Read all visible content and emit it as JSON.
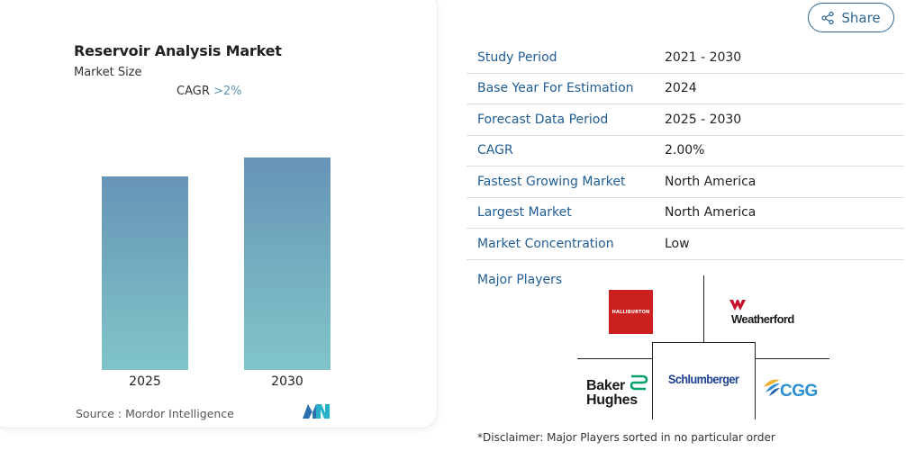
{
  "market_card": {
    "title": "Reservoir Analysis Market",
    "subtitle": "Market Size",
    "cagr_prefix": "CAGR",
    "cagr_value": ">2%",
    "source": "Source :  Mordor Intelligence",
    "logo_icon": "mordor-intelligence-logo"
  },
  "chart_data": {
    "type": "bar",
    "categories": [
      "2025",
      "2030"
    ],
    "values": [
      1.0,
      1.1
    ],
    "title": "",
    "xlabel": "",
    "ylabel": "",
    "ylim": [
      0,
      1.1
    ],
    "colors": [
      "#6694b7",
      "#80c4c8"
    ]
  },
  "share": {
    "label": "Share",
    "icon": "share-icon"
  },
  "info_table": [
    {
      "key": "Study Period",
      "value": "2021 - 2030"
    },
    {
      "key": "Base Year For Estimation",
      "value": "2024"
    },
    {
      "key": "Forecast Data Period",
      "value": "2025 - 2030"
    },
    {
      "key": "CAGR",
      "value": "2.00%"
    },
    {
      "key": "Fastest Growing Market",
      "value": "North America"
    },
    {
      "key": "Largest Market",
      "value": "North America"
    },
    {
      "key": "Market Concentration",
      "value": "Low"
    }
  ],
  "major_players": {
    "label": "Major Players",
    "halliburton": "HALLIBURTON",
    "weatherford": "Weatherford",
    "schlumberger": "Schlumberger",
    "baker_hughes_line1": "Baker",
    "baker_hughes_line2": "Hughes",
    "cgg": "CGG"
  },
  "disclaimer": "*Disclaimer: Major Players sorted in no particular order",
  "colors": {
    "accent": "#1f5d94",
    "cagr": "#5f96b3",
    "halliburton_red": "#cc1f1f",
    "schlumberger_blue": "#1d3f8f",
    "cgg_blue": "#2a8ed0",
    "weatherford_red": "#c8102e",
    "baker_green": "#05a36b"
  }
}
